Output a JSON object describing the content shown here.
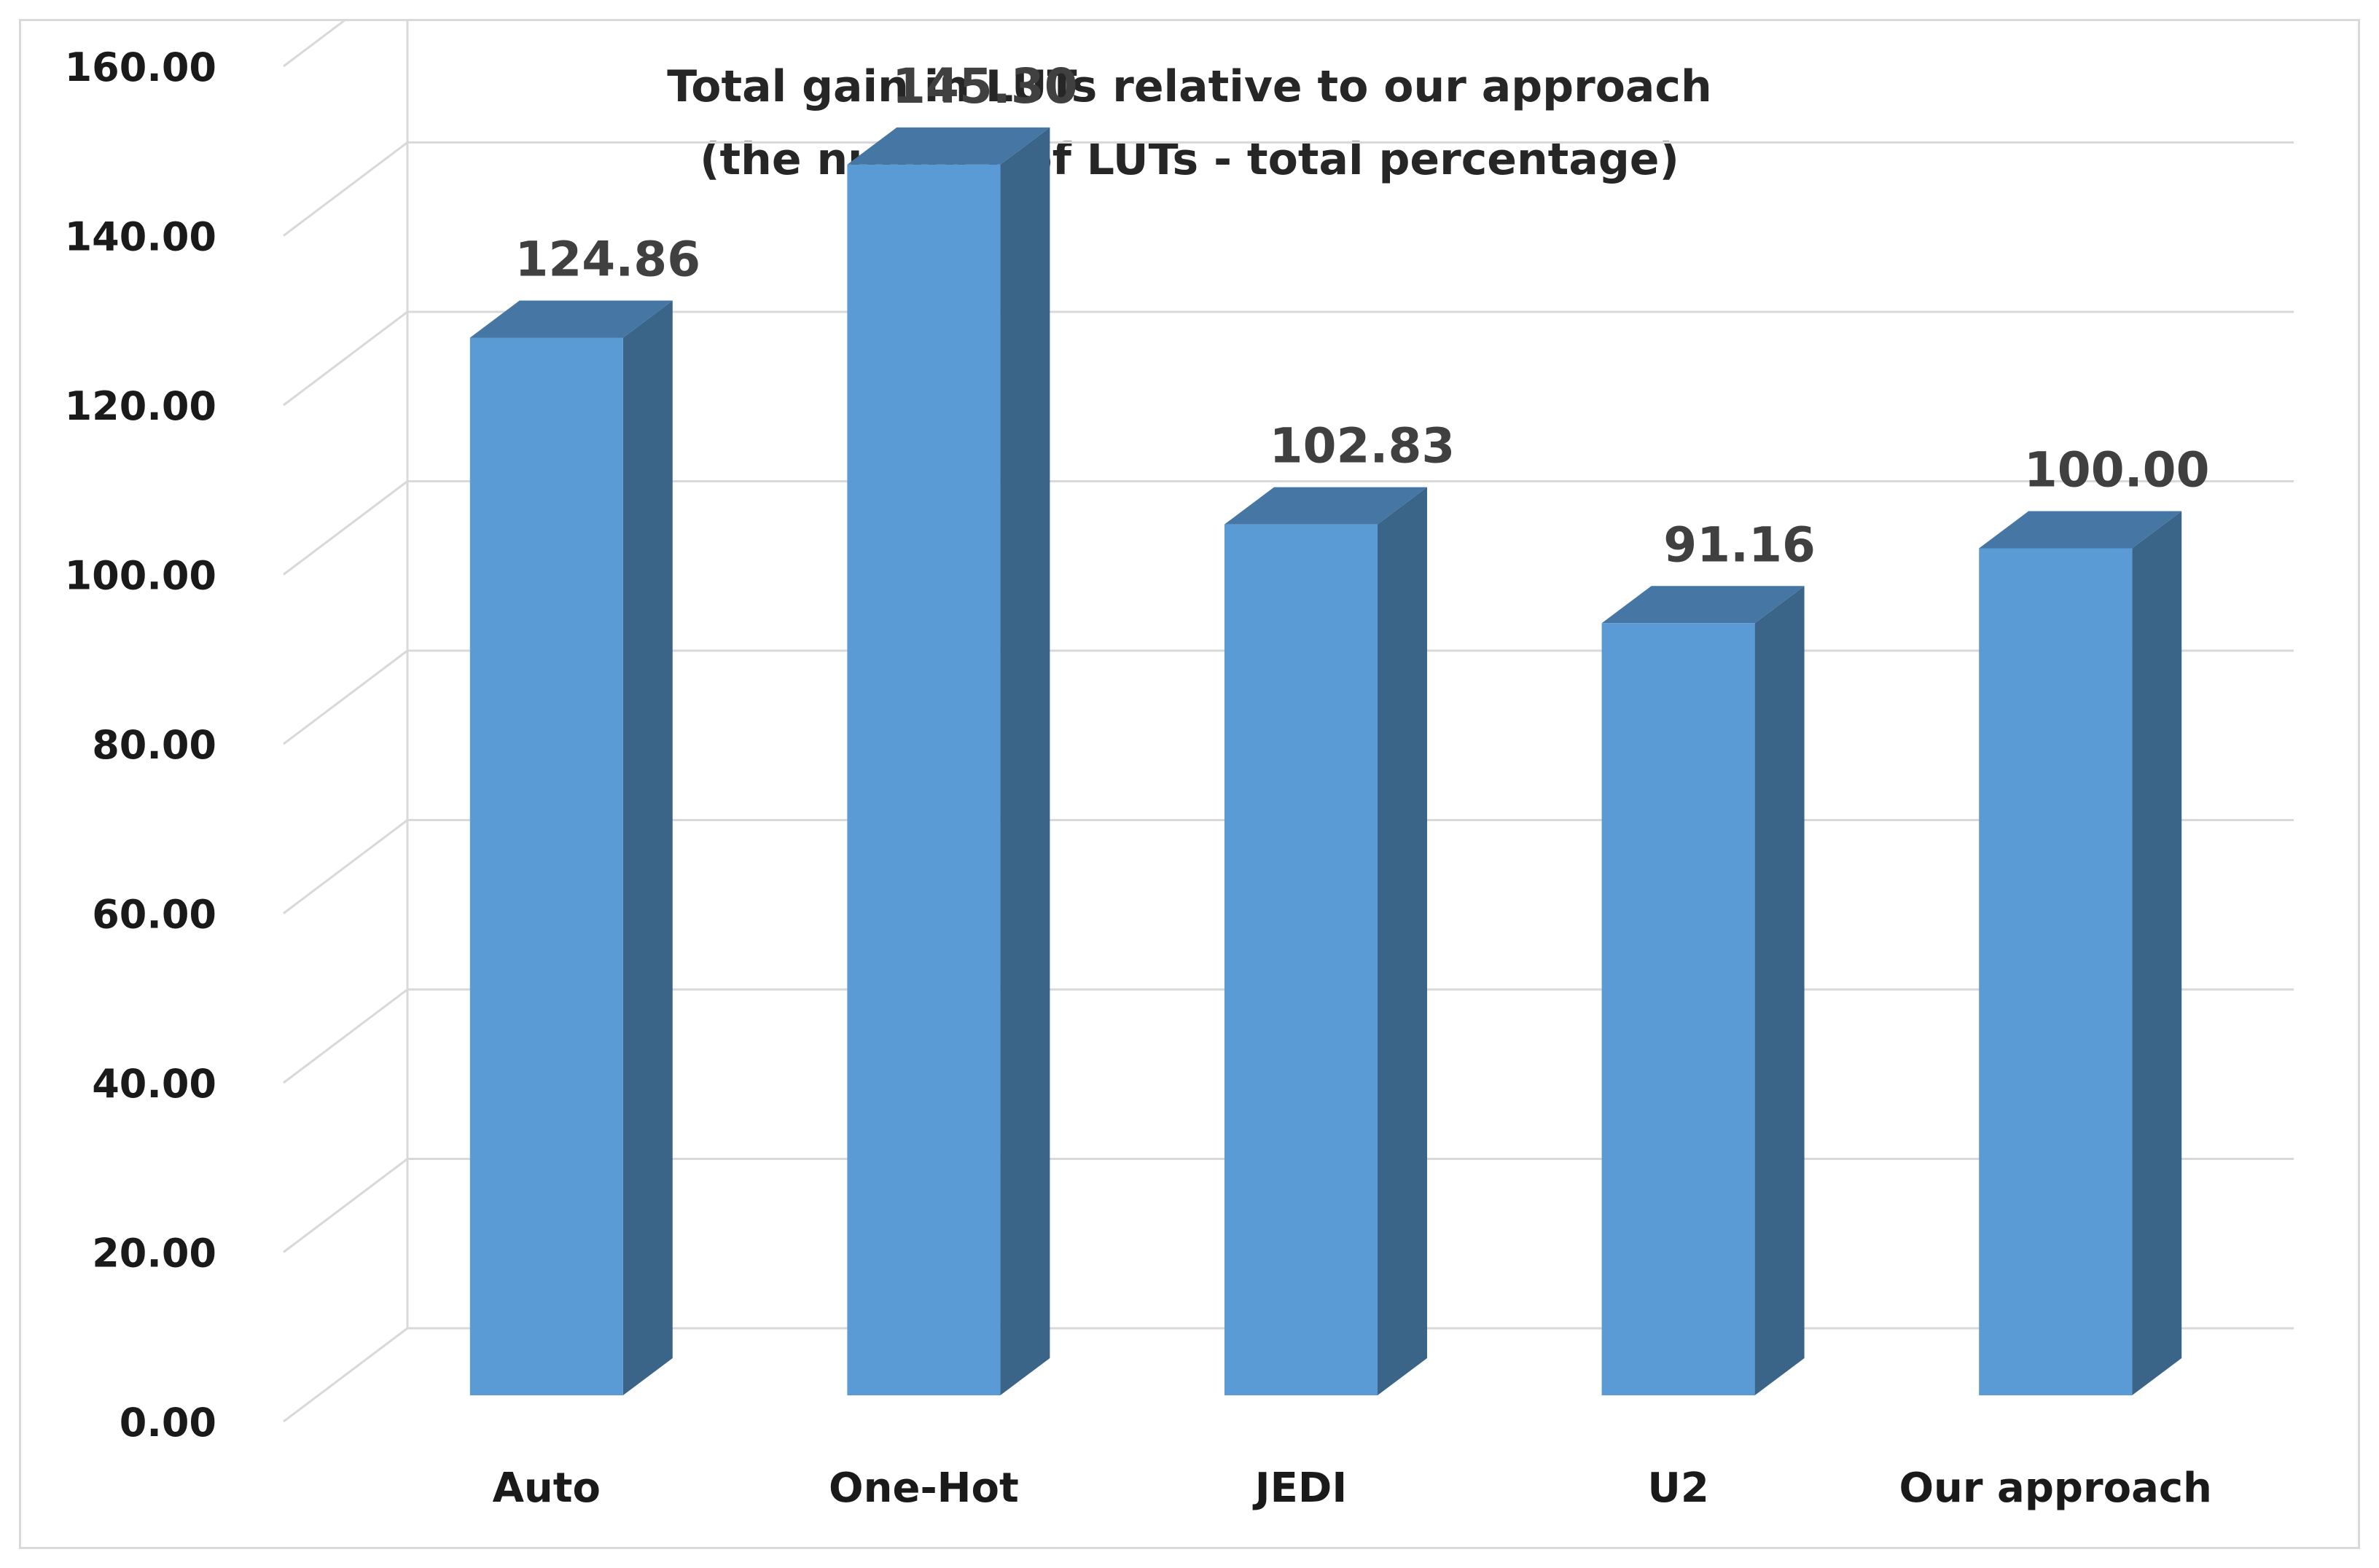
{
  "chart_data": {
    "type": "bar",
    "style": "3d-column",
    "title": "Total gain in LUTs relative to our approach",
    "subtitle": "(the number of LUTs - total percentage)",
    "xlabel": "",
    "ylabel": "",
    "categories": [
      "Auto",
      "One-Hot",
      "JEDI",
      "U2",
      "Our approach"
    ],
    "values": [
      124.86,
      145.3,
      102.83,
      91.16,
      100.0
    ],
    "value_labels": [
      "124.86",
      "145.30",
      "102.83",
      "91.16",
      "100.00"
    ],
    "ylim": [
      0,
      160
    ],
    "y_ticks": [
      {
        "value": 0,
        "label": "0.00"
      },
      {
        "value": 20,
        "label": "20.00"
      },
      {
        "value": 40,
        "label": "40.00"
      },
      {
        "value": 60,
        "label": "60.00"
      },
      {
        "value": 80,
        "label": "80.00"
      },
      {
        "value": 100,
        "label": "100.00"
      },
      {
        "value": 120,
        "label": "120.00"
      },
      {
        "value": 140,
        "label": "140.00"
      },
      {
        "value": 160,
        "label": "160.00"
      }
    ],
    "grid": true,
    "legend": "none",
    "colors": {
      "bar_front": "#5b9bd5",
      "bar_side": "#3a6589",
      "bar_top": "#4676a4",
      "gridline": "#d9d9d9",
      "data_label": "#404040",
      "axis_text": "#1a1a1a"
    }
  }
}
